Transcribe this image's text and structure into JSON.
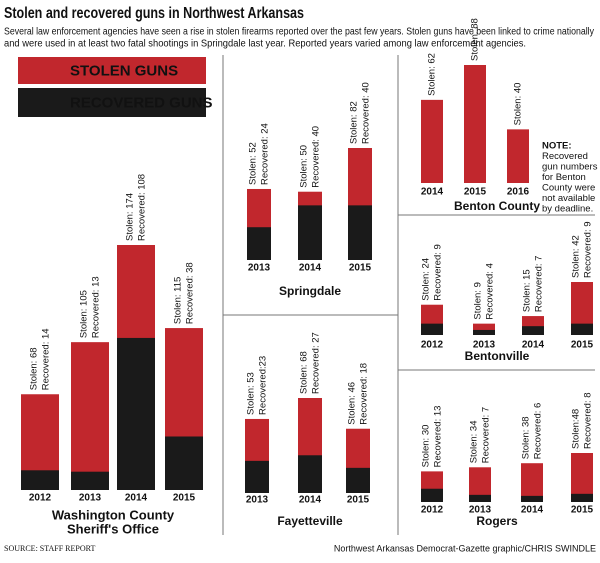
{
  "title": "Stolen and recovered guns in Northwest Arkansas",
  "subtitle": [
    "Several law enforcement agencies have seen a rise in stolen firearms reported over the past few years. Stolen guns have been linked to crime nationally",
    "and were used in at least two fatal shootings in Springdale last year. Reported years varied among law enforcement agencies."
  ],
  "legend": [
    {
      "label": "STOLEN GUNS",
      "color": "#c1272d"
    },
    {
      "label": "RECOVERED GUNS",
      "color": "#1a1a1a"
    }
  ],
  "chart_data": [
    {
      "type": "bar",
      "title": [
        "Washington County",
        "Sheriff's Office"
      ],
      "categories": [
        "2012",
        "2013",
        "2014",
        "2015"
      ],
      "series": [
        {
          "color": "#c1272d",
          "values": [
            68,
            105,
            174,
            115
          ],
          "value_labels": [
            "Stolen: 68",
            "Stolen: 105",
            "Stolen: 174",
            "Stolen: 115"
          ]
        },
        {
          "color": "#1a1a1a",
          "values": [
            14,
            13,
            108,
            38
          ],
          "value_labels": [
            "Recovered: 14",
            "Recovered: 13",
            "Recovered: 108",
            "Recovered: 38"
          ]
        }
      ]
    },
    {
      "type": "bar",
      "title": [
        "Springdale"
      ],
      "categories": [
        "2013",
        "2014",
        "2015"
      ],
      "series": [
        {
          "color": "#c1272d",
          "values": [
            52,
            50,
            82
          ],
          "value_labels": [
            "Stolen: 52",
            "Stolen: 50",
            "Stolen: 82"
          ]
        },
        {
          "color": "#1a1a1a",
          "values": [
            24,
            40,
            40
          ],
          "value_labels": [
            "Recovered: 24",
            "Recovered: 40",
            "Recovered: 40"
          ]
        }
      ]
    },
    {
      "type": "bar",
      "title": [
        "Fayetteville"
      ],
      "categories": [
        "2013",
        "2014",
        "2015"
      ],
      "series": [
        {
          "color": "#c1272d",
          "values": [
            53,
            68,
            46
          ],
          "value_labels": [
            "Stolen: 53",
            "Stolen: 68",
            "Stolen: 46"
          ]
        },
        {
          "color": "#1a1a1a",
          "values": [
            23,
            27,
            18
          ],
          "value_labels": [
            "Recovered:23",
            "Recovered: 27",
            "Recovered: 18"
          ]
        }
      ]
    },
    {
      "type": "bar",
      "title": [
        "Benton County"
      ],
      "categories": [
        "2014",
        "2015",
        "2016"
      ],
      "series": [
        {
          "color": "#c1272d",
          "values": [
            62,
            88,
            40
          ],
          "value_labels": [
            "Stolen: 62",
            "Stolen: 88",
            "Stolen: 40"
          ]
        }
      ],
      "note": [
        "NOTE:",
        "Recovered",
        "gun numbers",
        "for Benton",
        "County were",
        "not available",
        "by deadline."
      ]
    },
    {
      "type": "bar",
      "title": [
        "Bentonville"
      ],
      "categories": [
        "2012",
        "2013",
        "2014",
        "2015"
      ],
      "series": [
        {
          "color": "#c1272d",
          "values": [
            24,
            9,
            15,
            42
          ],
          "value_labels": [
            "Stolen: 24",
            "Stolen: 9",
            "Stolen: 15",
            "Stolen: 42"
          ]
        },
        {
          "color": "#1a1a1a",
          "values": [
            9,
            4,
            7,
            9
          ],
          "value_labels": [
            "Recovered: 9",
            "Recovered: 4",
            "Recovered: 7",
            "Recovered: 9"
          ]
        }
      ]
    },
    {
      "type": "bar",
      "title": [
        "Rogers"
      ],
      "categories": [
        "2012",
        "2013",
        "2014",
        "2015"
      ],
      "series": [
        {
          "color": "#c1272d",
          "values": [
            30,
            34,
            38,
            48
          ],
          "value_labels": [
            "Stolen: 30",
            "Stolen: 34",
            "Stolen: 38",
            "Stolen:48"
          ]
        },
        {
          "color": "#1a1a1a",
          "values": [
            13,
            7,
            6,
            8
          ],
          "value_labels": [
            "Recovered: 13",
            "Recovered: 7",
            "Recovered: 6",
            "Recovered: 8"
          ]
        }
      ]
    }
  ],
  "source": "SOURCE: STAFF REPORT",
  "credit": "Northwest Arkansas Democrat-Gazette graphic/CHRIS SWINDLE"
}
